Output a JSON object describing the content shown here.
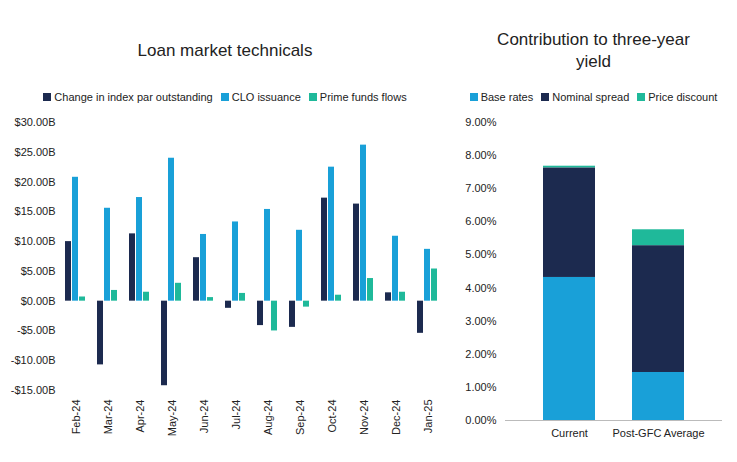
{
  "chart_data": [
    {
      "type": "bar",
      "title": "Loan market technicals",
      "categories": [
        "Feb-24",
        "Mar-24",
        "Apr-24",
        "May-24",
        "Jun-24",
        "Jul-24",
        "Aug-24",
        "Sep-24",
        "Oct-24",
        "Nov-24",
        "Dec-24",
        "Jan-25"
      ],
      "series": [
        {
          "name": "Change in index par outstanding",
          "color": "#1c2a4f",
          "values": [
            10.0,
            -10.7,
            11.3,
            -14.2,
            7.3,
            -1.2,
            -4.1,
            -4.4,
            17.3,
            16.3,
            1.4,
            -5.4
          ]
        },
        {
          "name": "CLO issuance",
          "color": "#19a0d8",
          "values": [
            20.8,
            15.6,
            17.4,
            24.0,
            11.2,
            13.3,
            15.4,
            11.9,
            22.5,
            26.2,
            10.9,
            8.7
          ]
        },
        {
          "name": "Prime funds flows",
          "color": "#1fb99a",
          "values": [
            0.7,
            1.8,
            1.5,
            3.0,
            0.6,
            1.3,
            -5.0,
            -1.0,
            1.0,
            3.8,
            1.5,
            5.4
          ]
        }
      ],
      "ylim": [
        -15,
        30
      ],
      "yticks": [
        {
          "value": -15,
          "label": "-$15.00B"
        },
        {
          "value": -10,
          "label": "-$10.00B"
        },
        {
          "value": -5,
          "label": "-$5.00B"
        },
        {
          "value": 0,
          "label": "$0.00B"
        },
        {
          "value": 5,
          "label": "$5.00B"
        },
        {
          "value": 10,
          "label": "$10.00B"
        },
        {
          "value": 15,
          "label": "$15.00B"
        },
        {
          "value": 20,
          "label": "$20.00B"
        },
        {
          "value": 25,
          "label": "$25.00B"
        },
        {
          "value": 30,
          "label": "$30.00B"
        }
      ],
      "grid": false,
      "legend": "top"
    },
    {
      "type": "bar",
      "title": "Contribution to three-year yield",
      "categories": [
        "Current",
        "Post-GFC Average"
      ],
      "series": [
        {
          "name": "Base rates",
          "color": "#19a0d8",
          "values": [
            4.32,
            1.45
          ]
        },
        {
          "name": "Nominal spread",
          "color": "#1c2a4f",
          "values": [
            3.31,
            3.83
          ]
        },
        {
          "name": "Price discount",
          "color": "#1fb99a",
          "values": [
            0.05,
            0.48
          ]
        }
      ],
      "ylim": [
        0,
        9
      ],
      "yticks": [
        {
          "value": 0,
          "label": "0.00%"
        },
        {
          "value": 1,
          "label": "1.00%"
        },
        {
          "value": 2,
          "label": "2.00%"
        },
        {
          "value": 3,
          "label": "3.00%"
        },
        {
          "value": 4,
          "label": "4.00%"
        },
        {
          "value": 5,
          "label": "5.00%"
        },
        {
          "value": 6,
          "label": "6.00%"
        },
        {
          "value": 7,
          "label": "7.00%"
        },
        {
          "value": 8,
          "label": "8.00%"
        },
        {
          "value": 9,
          "label": "9.00%"
        }
      ],
      "stacked": true,
      "grid": false,
      "legend": "top"
    }
  ]
}
